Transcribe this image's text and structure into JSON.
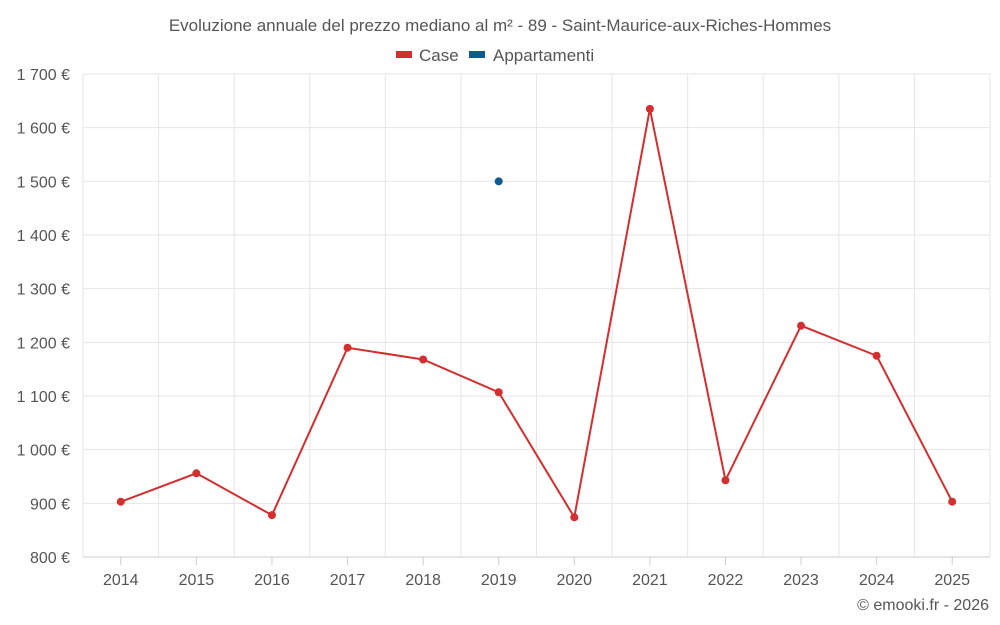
{
  "chart_data": {
    "type": "line",
    "title": "Evoluzione annuale del prezzo mediano al m² - 89 - Saint-Maurice-aux-Riches-Hommes",
    "xlabel": "",
    "ylabel": "",
    "x": [
      "2014",
      "2015",
      "2016",
      "2017",
      "2018",
      "2019",
      "2020",
      "2021",
      "2022",
      "2023",
      "2024",
      "2025"
    ],
    "ylim": [
      800,
      1700
    ],
    "yticks": [
      800,
      900,
      1000,
      1100,
      1200,
      1300,
      1400,
      1500,
      1600,
      1700
    ],
    "ytick_labels": [
      "800 €",
      "900 €",
      "1 000 €",
      "1 100 €",
      "1 200 €",
      "1 300 €",
      "1 400 €",
      "1 500 €",
      "1 600 €",
      "1 700 €"
    ],
    "grid": true,
    "legend_position": "top-center",
    "series": [
      {
        "name": "Case",
        "color": "#d32f2f",
        "values": [
          903,
          956,
          878,
          1190,
          1168,
          1107,
          874,
          1635,
          943,
          1231,
          1175,
          903
        ]
      },
      {
        "name": "Appartamenti",
        "color": "#0d5c91",
        "values": [
          null,
          null,
          null,
          null,
          null,
          1500,
          null,
          null,
          null,
          null,
          null,
          null
        ]
      }
    ]
  },
  "credit": "© emooki.fr - 2026"
}
